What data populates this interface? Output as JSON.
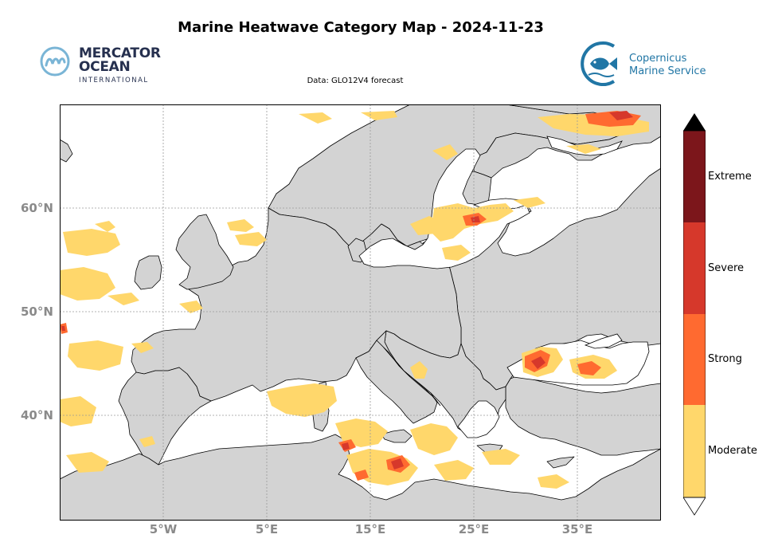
{
  "header": {
    "title": "Marine Heatwave Category Map - 2024-11-23",
    "subtitle": "Data: GLO12V4 forecast"
  },
  "logos": {
    "mercator": {
      "line1": "MERCATOR",
      "line2": "OCEAN",
      "line3": "INTERNATIONAL"
    },
    "copernicus": {
      "line1": "Copernicus",
      "line2": "Marine Service"
    }
  },
  "map": {
    "region": "Europe and Mediterranean",
    "lat_ticks": [
      "60°N",
      "50°N",
      "40°N"
    ],
    "lon_ticks": [
      "5°W",
      "5°E",
      "15°E",
      "25°E",
      "35°E"
    ],
    "colors": {
      "ocean": "#ffffff",
      "land": "#d3d3d3",
      "coast": "#000000",
      "grid": "#9a9a9a",
      "moderate": "#ffd76b",
      "strong": "#ff6a30",
      "severe": "#d6382b",
      "extreme": "#7c161b"
    }
  },
  "legend": {
    "categories": [
      "Extreme",
      "Severe",
      "Strong",
      "Moderate"
    ],
    "overflow_top_color": "#000000",
    "underflow_bottom_color": "#ffffff"
  }
}
